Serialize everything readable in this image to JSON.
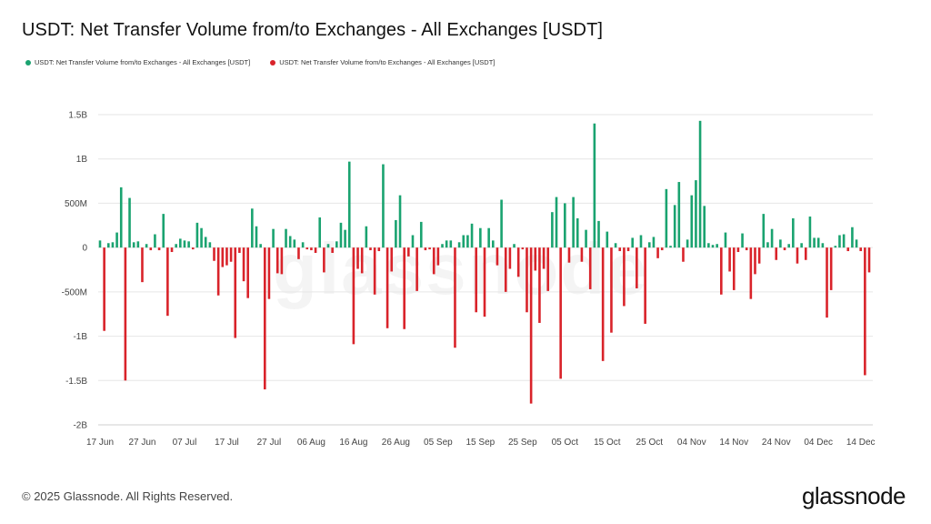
{
  "title": "USDT: Net Transfer Volume from/to Exchanges - All Exchanges [USDT]",
  "watermark": "glassnode",
  "footer": "© 2025 Glassnode. All Rights Reserved.",
  "brand": "glassnode",
  "colors": {
    "positive": "#1aa370",
    "negative": "#d9232a",
    "grid": "#e6e6e6"
  },
  "chart_data": {
    "type": "bar",
    "title": "USDT: Net Transfer Volume from/to Exchanges - All Exchanges [USDT]",
    "legend": [
      {
        "name": "USDT: Net Transfer Volume from/to Exchanges - All Exchanges [USDT]",
        "color": "#1aa370"
      },
      {
        "name": "USDT: Net Transfer Volume from/to Exchanges - All Exchanges [USDT]",
        "color": "#d9232a"
      }
    ],
    "legend_position": "top-left",
    "grid": true,
    "ylim": [
      -2000000000,
      1500000000
    ],
    "y_ticks": [
      {
        "value": 1500000000,
        "label": "1.5B"
      },
      {
        "value": 1000000000,
        "label": "1B"
      },
      {
        "value": 500000000,
        "label": "500M"
      },
      {
        "value": 0,
        "label": "0"
      },
      {
        "value": -500000000,
        "label": "-500M"
      },
      {
        "value": -1000000000,
        "label": "-1B"
      },
      {
        "value": -1500000000,
        "label": "-1.5B"
      },
      {
        "value": -2000000000,
        "label": "-2B"
      }
    ],
    "x_range": [
      "2025-06-17",
      "2025-12-16"
    ],
    "x_ticks": [
      {
        "date": "2025-06-17",
        "label": "17 Jun"
      },
      {
        "date": "2025-06-27",
        "label": "27 Jun"
      },
      {
        "date": "2025-07-07",
        "label": "07 Jul"
      },
      {
        "date": "2025-07-17",
        "label": "17 Jul"
      },
      {
        "date": "2025-07-27",
        "label": "27 Jul"
      },
      {
        "date": "2025-08-06",
        "label": "06 Aug"
      },
      {
        "date": "2025-08-16",
        "label": "16 Aug"
      },
      {
        "date": "2025-08-26",
        "label": "26 Aug"
      },
      {
        "date": "2025-09-05",
        "label": "05 Sep"
      },
      {
        "date": "2025-09-15",
        "label": "15 Sep"
      },
      {
        "date": "2025-09-25",
        "label": "25 Sep"
      },
      {
        "date": "2025-10-05",
        "label": "05 Oct"
      },
      {
        "date": "2025-10-15",
        "label": "15 Oct"
      },
      {
        "date": "2025-10-25",
        "label": "25 Oct"
      },
      {
        "date": "2025-11-04",
        "label": "04 Nov"
      },
      {
        "date": "2025-11-14",
        "label": "14 Nov"
      },
      {
        "date": "2025-11-24",
        "label": "24 Nov"
      },
      {
        "date": "2025-12-04",
        "label": "04 Dec"
      },
      {
        "date": "2025-12-14",
        "label": "14 Dec"
      }
    ],
    "points": [
      {
        "x": "2025-06-17",
        "y": 80000000
      },
      {
        "x": "2025-06-18",
        "y": -940000000
      },
      {
        "x": "2025-06-19",
        "y": 50000000
      },
      {
        "x": "2025-06-20",
        "y": 60000000
      },
      {
        "x": "2025-06-21",
        "y": 170000000
      },
      {
        "x": "2025-06-22",
        "y": 680000000
      },
      {
        "x": "2025-06-23",
        "y": -1500000000
      },
      {
        "x": "2025-06-24",
        "y": 560000000
      },
      {
        "x": "2025-06-25",
        "y": 60000000
      },
      {
        "x": "2025-06-26",
        "y": 70000000
      },
      {
        "x": "2025-06-27",
        "y": -390000000
      },
      {
        "x": "2025-06-28",
        "y": 40000000
      },
      {
        "x": "2025-06-29",
        "y": -30000000
      },
      {
        "x": "2025-06-30",
        "y": 150000000
      },
      {
        "x": "2025-07-01",
        "y": -30000000
      },
      {
        "x": "2025-07-02",
        "y": 380000000
      },
      {
        "x": "2025-07-03",
        "y": -770000000
      },
      {
        "x": "2025-07-04",
        "y": -50000000
      },
      {
        "x": "2025-07-05",
        "y": 40000000
      },
      {
        "x": "2025-07-06",
        "y": 100000000
      },
      {
        "x": "2025-07-07",
        "y": 80000000
      },
      {
        "x": "2025-07-08",
        "y": 70000000
      },
      {
        "x": "2025-07-09",
        "y": -20000000
      },
      {
        "x": "2025-07-10",
        "y": 280000000
      },
      {
        "x": "2025-07-11",
        "y": 220000000
      },
      {
        "x": "2025-07-12",
        "y": 120000000
      },
      {
        "x": "2025-07-13",
        "y": 60000000
      },
      {
        "x": "2025-07-14",
        "y": -150000000
      },
      {
        "x": "2025-07-15",
        "y": -540000000
      },
      {
        "x": "2025-07-16",
        "y": -220000000
      },
      {
        "x": "2025-07-17",
        "y": -200000000
      },
      {
        "x": "2025-07-18",
        "y": -160000000
      },
      {
        "x": "2025-07-19",
        "y": -1020000000
      },
      {
        "x": "2025-07-20",
        "y": -60000000
      },
      {
        "x": "2025-07-21",
        "y": -380000000
      },
      {
        "x": "2025-07-22",
        "y": -570000000
      },
      {
        "x": "2025-07-23",
        "y": 440000000
      },
      {
        "x": "2025-07-24",
        "y": 240000000
      },
      {
        "x": "2025-07-25",
        "y": 40000000
      },
      {
        "x": "2025-07-26",
        "y": -1600000000
      },
      {
        "x": "2025-07-27",
        "y": -580000000
      },
      {
        "x": "2025-07-28",
        "y": 210000000
      },
      {
        "x": "2025-07-29",
        "y": -290000000
      },
      {
        "x": "2025-07-30",
        "y": -300000000
      },
      {
        "x": "2025-07-31",
        "y": 210000000
      },
      {
        "x": "2025-08-01",
        "y": 130000000
      },
      {
        "x": "2025-08-02",
        "y": 90000000
      },
      {
        "x": "2025-08-03",
        "y": -130000000
      },
      {
        "x": "2025-08-04",
        "y": 60000000
      },
      {
        "x": "2025-08-05",
        "y": -20000000
      },
      {
        "x": "2025-08-06",
        "y": -30000000
      },
      {
        "x": "2025-08-07",
        "y": -60000000
      },
      {
        "x": "2025-08-08",
        "y": 340000000
      },
      {
        "x": "2025-08-09",
        "y": -280000000
      },
      {
        "x": "2025-08-10",
        "y": 40000000
      },
      {
        "x": "2025-08-11",
        "y": -60000000
      },
      {
        "x": "2025-08-12",
        "y": 70000000
      },
      {
        "x": "2025-08-13",
        "y": 280000000
      },
      {
        "x": "2025-08-14",
        "y": 200000000
      },
      {
        "x": "2025-08-15",
        "y": 970000000
      },
      {
        "x": "2025-08-16",
        "y": -1090000000
      },
      {
        "x": "2025-08-17",
        "y": -240000000
      },
      {
        "x": "2025-08-18",
        "y": -290000000
      },
      {
        "x": "2025-08-19",
        "y": 240000000
      },
      {
        "x": "2025-08-20",
        "y": -30000000
      },
      {
        "x": "2025-08-21",
        "y": -530000000
      },
      {
        "x": "2025-08-22",
        "y": -40000000
      },
      {
        "x": "2025-08-23",
        "y": 940000000
      },
      {
        "x": "2025-08-24",
        "y": -910000000
      },
      {
        "x": "2025-08-25",
        "y": -270000000
      },
      {
        "x": "2025-08-26",
        "y": 310000000
      },
      {
        "x": "2025-08-27",
        "y": 590000000
      },
      {
        "x": "2025-08-28",
        "y": -920000000
      },
      {
        "x": "2025-08-29",
        "y": -100000000
      },
      {
        "x": "2025-08-30",
        "y": 140000000
      },
      {
        "x": "2025-08-31",
        "y": -490000000
      },
      {
        "x": "2025-09-01",
        "y": 290000000
      },
      {
        "x": "2025-09-02",
        "y": -30000000
      },
      {
        "x": "2025-09-03",
        "y": -20000000
      },
      {
        "x": "2025-09-04",
        "y": -300000000
      },
      {
        "x": "2025-09-05",
        "y": -200000000
      },
      {
        "x": "2025-09-06",
        "y": 40000000
      },
      {
        "x": "2025-09-07",
        "y": 80000000
      },
      {
        "x": "2025-09-08",
        "y": 80000000
      },
      {
        "x": "2025-09-09",
        "y": -1130000000
      },
      {
        "x": "2025-09-10",
        "y": 60000000
      },
      {
        "x": "2025-09-11",
        "y": 140000000
      },
      {
        "x": "2025-09-12",
        "y": 140000000
      },
      {
        "x": "2025-09-13",
        "y": 270000000
      },
      {
        "x": "2025-09-14",
        "y": -730000000
      },
      {
        "x": "2025-09-15",
        "y": 220000000
      },
      {
        "x": "2025-09-16",
        "y": -780000000
      },
      {
        "x": "2025-09-17",
        "y": 220000000
      },
      {
        "x": "2025-09-18",
        "y": 80000000
      },
      {
        "x": "2025-09-19",
        "y": -200000000
      },
      {
        "x": "2025-09-20",
        "y": 540000000
      },
      {
        "x": "2025-09-21",
        "y": -500000000
      },
      {
        "x": "2025-09-22",
        "y": -240000000
      },
      {
        "x": "2025-09-23",
        "y": 40000000
      },
      {
        "x": "2025-09-24",
        "y": -330000000
      },
      {
        "x": "2025-09-25",
        "y": -20000000
      },
      {
        "x": "2025-09-26",
        "y": -730000000
      },
      {
        "x": "2025-09-27",
        "y": -1760000000
      },
      {
        "x": "2025-09-28",
        "y": -260000000
      },
      {
        "x": "2025-09-29",
        "y": -850000000
      },
      {
        "x": "2025-09-30",
        "y": -240000000
      },
      {
        "x": "2025-10-01",
        "y": -490000000
      },
      {
        "x": "2025-10-02",
        "y": 400000000
      },
      {
        "x": "2025-10-03",
        "y": 570000000
      },
      {
        "x": "2025-10-04",
        "y": -1480000000
      },
      {
        "x": "2025-10-05",
        "y": 500000000
      },
      {
        "x": "2025-10-06",
        "y": -170000000
      },
      {
        "x": "2025-10-07",
        "y": 570000000
      },
      {
        "x": "2025-10-08",
        "y": 330000000
      },
      {
        "x": "2025-10-09",
        "y": -160000000
      },
      {
        "x": "2025-10-10",
        "y": 200000000
      },
      {
        "x": "2025-10-11",
        "y": -470000000
      },
      {
        "x": "2025-10-12",
        "y": 1400000000
      },
      {
        "x": "2025-10-13",
        "y": 300000000
      },
      {
        "x": "2025-10-14",
        "y": -1280000000
      },
      {
        "x": "2025-10-15",
        "y": 180000000
      },
      {
        "x": "2025-10-16",
        "y": -960000000
      },
      {
        "x": "2025-10-17",
        "y": 50000000
      },
      {
        "x": "2025-10-18",
        "y": -40000000
      },
      {
        "x": "2025-10-19",
        "y": -660000000
      },
      {
        "x": "2025-10-20",
        "y": -40000000
      },
      {
        "x": "2025-10-21",
        "y": 110000000
      },
      {
        "x": "2025-10-22",
        "y": -460000000
      },
      {
        "x": "2025-10-23",
        "y": 140000000
      },
      {
        "x": "2025-10-24",
        "y": -860000000
      },
      {
        "x": "2025-10-25",
        "y": 60000000
      },
      {
        "x": "2025-10-26",
        "y": 120000000
      },
      {
        "x": "2025-10-27",
        "y": -120000000
      },
      {
        "x": "2025-10-28",
        "y": -30000000
      },
      {
        "x": "2025-10-29",
        "y": 660000000
      },
      {
        "x": "2025-10-30",
        "y": 20000000
      },
      {
        "x": "2025-10-31",
        "y": 480000000
      },
      {
        "x": "2025-11-01",
        "y": 740000000
      },
      {
        "x": "2025-11-02",
        "y": -160000000
      },
      {
        "x": "2025-11-03",
        "y": 90000000
      },
      {
        "x": "2025-11-04",
        "y": 590000000
      },
      {
        "x": "2025-11-05",
        "y": 760000000
      },
      {
        "x": "2025-11-06",
        "y": 1430000000
      },
      {
        "x": "2025-11-07",
        "y": 470000000
      },
      {
        "x": "2025-11-08",
        "y": 50000000
      },
      {
        "x": "2025-11-09",
        "y": 30000000
      },
      {
        "x": "2025-11-10",
        "y": 40000000
      },
      {
        "x": "2025-11-11",
        "y": -530000000
      },
      {
        "x": "2025-11-12",
        "y": 170000000
      },
      {
        "x": "2025-11-13",
        "y": -270000000
      },
      {
        "x": "2025-11-14",
        "y": -480000000
      },
      {
        "x": "2025-11-15",
        "y": -50000000
      },
      {
        "x": "2025-11-16",
        "y": 160000000
      },
      {
        "x": "2025-11-17",
        "y": -30000000
      },
      {
        "x": "2025-11-18",
        "y": -580000000
      },
      {
        "x": "2025-11-19",
        "y": -300000000
      },
      {
        "x": "2025-11-20",
        "y": -180000000
      },
      {
        "x": "2025-11-21",
        "y": 380000000
      },
      {
        "x": "2025-11-22",
        "y": 60000000
      },
      {
        "x": "2025-11-23",
        "y": 210000000
      },
      {
        "x": "2025-11-24",
        "y": -140000000
      },
      {
        "x": "2025-11-25",
        "y": 90000000
      },
      {
        "x": "2025-11-26",
        "y": -30000000
      },
      {
        "x": "2025-11-27",
        "y": 40000000
      },
      {
        "x": "2025-11-28",
        "y": 330000000
      },
      {
        "x": "2025-11-29",
        "y": -180000000
      },
      {
        "x": "2025-11-30",
        "y": 50000000
      },
      {
        "x": "2025-12-01",
        "y": -140000000
      },
      {
        "x": "2025-12-02",
        "y": 350000000
      },
      {
        "x": "2025-12-03",
        "y": 110000000
      },
      {
        "x": "2025-12-04",
        "y": 110000000
      },
      {
        "x": "2025-12-05",
        "y": 50000000
      },
      {
        "x": "2025-12-06",
        "y": -790000000
      },
      {
        "x": "2025-12-07",
        "y": -480000000
      },
      {
        "x": "2025-12-08",
        "y": 20000000
      },
      {
        "x": "2025-12-09",
        "y": 140000000
      },
      {
        "x": "2025-12-10",
        "y": 150000000
      },
      {
        "x": "2025-12-11",
        "y": -40000000
      },
      {
        "x": "2025-12-12",
        "y": 230000000
      },
      {
        "x": "2025-12-13",
        "y": 90000000
      },
      {
        "x": "2025-12-14",
        "y": -40000000
      },
      {
        "x": "2025-12-15",
        "y": -1440000000
      },
      {
        "x": "2025-12-16",
        "y": -280000000
      }
    ]
  }
}
